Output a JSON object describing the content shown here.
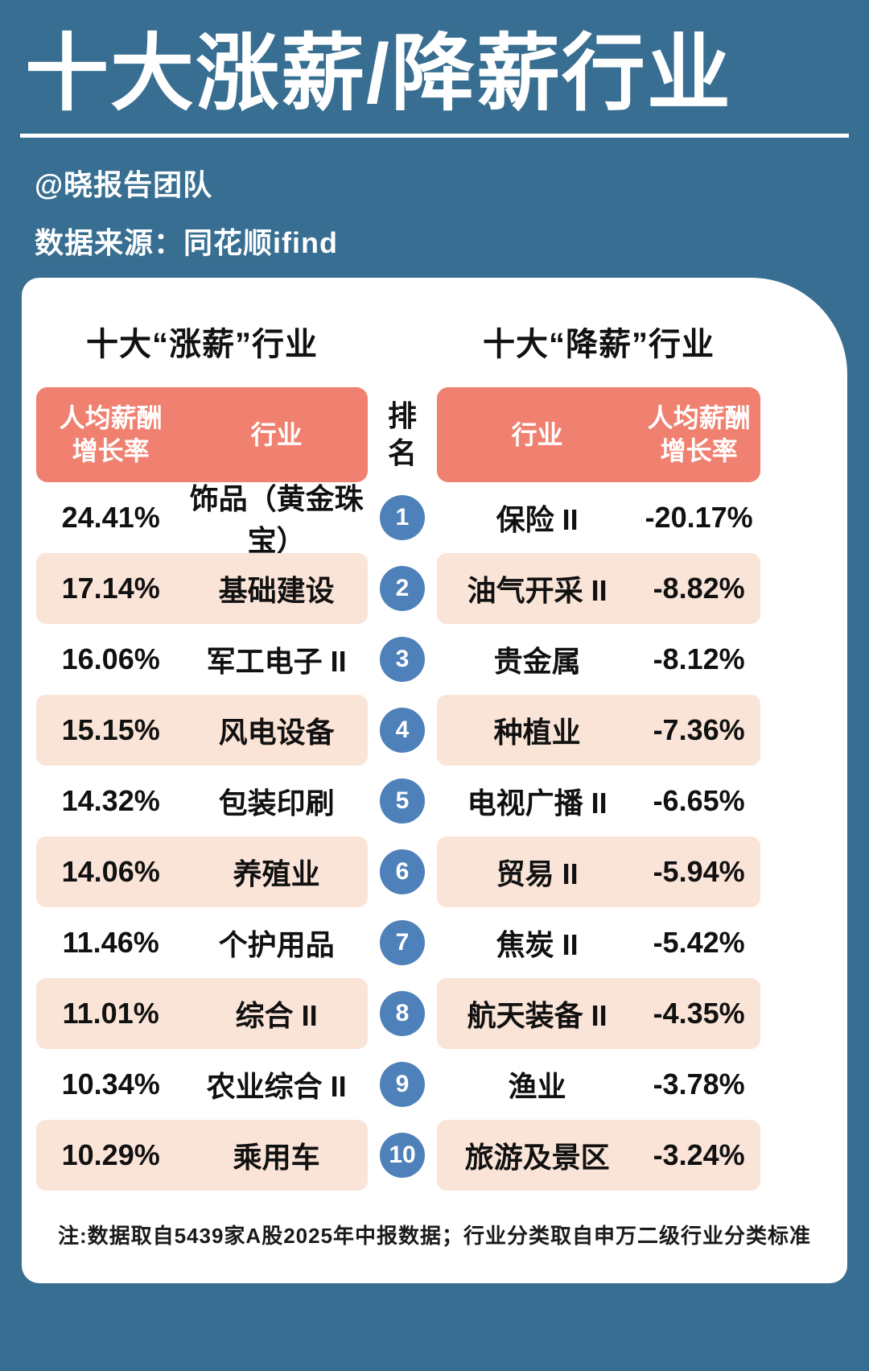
{
  "page": {
    "title": "十大涨薪/降薪行业",
    "author": "@晓报告团队",
    "source": "数据来源：同花顺ifind",
    "footnote": "注:数据取自5439家A股2025年中报数据；行业分类取自申万二级行业分类标准"
  },
  "colors": {
    "background": "#376E91",
    "header_bar": "#F0806F",
    "row_alt": "#FAE4D8",
    "rank_circle": "#4E80BA",
    "card": "#FFFFFF"
  },
  "rank": {
    "header": "排名",
    "values": [
      "1",
      "2",
      "3",
      "4",
      "5",
      "6",
      "7",
      "8",
      "9",
      "10"
    ]
  },
  "increase_table": {
    "title": "十大“涨薪”行业",
    "header_value": "人均薪酬增长率",
    "header_industry": "行业",
    "rows": [
      {
        "value": "24.41%",
        "industry": "饰品（黄金珠宝）"
      },
      {
        "value": "17.14%",
        "industry": "基础建设"
      },
      {
        "value": "16.06%",
        "industry": "军工电子 II"
      },
      {
        "value": "15.15%",
        "industry": "风电设备"
      },
      {
        "value": "14.32%",
        "industry": "包装印刷"
      },
      {
        "value": "14.06%",
        "industry": "养殖业"
      },
      {
        "value": "11.46%",
        "industry": "个护用品"
      },
      {
        "value": "11.01%",
        "industry": "综合 II"
      },
      {
        "value": "10.34%",
        "industry": "农业综合 II"
      },
      {
        "value": "10.29%",
        "industry": "乘用车"
      }
    ]
  },
  "decrease_table": {
    "title": "十大“降薪”行业",
    "header_industry": "行业",
    "header_value": "人均薪酬增长率",
    "rows": [
      {
        "industry": "保险 II",
        "value": "-20.17%"
      },
      {
        "industry": "油气开采 II",
        "value": "-8.82%"
      },
      {
        "industry": "贵金属",
        "value": "-8.12%"
      },
      {
        "industry": "种植业",
        "value": "-7.36%"
      },
      {
        "industry": "电视广播 II",
        "value": "-6.65%"
      },
      {
        "industry": "贸易 II",
        "value": "-5.94%"
      },
      {
        "industry": "焦炭 II",
        "value": "-5.42%"
      },
      {
        "industry": "航天装备 II",
        "value": "-4.35%"
      },
      {
        "industry": "渔业",
        "value": "-3.78%"
      },
      {
        "industry": "旅游及景区",
        "value": "-3.24%"
      }
    ]
  },
  "chart_data": {
    "type": "table",
    "title": "十大涨薪/降薪行业",
    "series": [
      {
        "name": "十大“涨薪”行业",
        "categories": [
          "饰品（黄金珠宝）",
          "基础建设",
          "军工电子 II",
          "风电设备",
          "包装印刷",
          "养殖业",
          "个护用品",
          "综合 II",
          "农业综合 II",
          "乘用车"
        ],
        "values": [
          24.41,
          17.14,
          16.06,
          15.15,
          14.32,
          14.06,
          11.46,
          11.01,
          10.34,
          10.29
        ],
        "unit": "%",
        "value_label": "人均薪酬增长率"
      },
      {
        "name": "十大“降薪”行业",
        "categories": [
          "保险 II",
          "油气开采 II",
          "贵金属",
          "种植业",
          "电视广播 II",
          "贸易 II",
          "焦炭 II",
          "航天装备 II",
          "渔业",
          "旅游及景区"
        ],
        "values": [
          -20.17,
          -8.82,
          -8.12,
          -7.36,
          -6.65,
          -5.94,
          -5.42,
          -4.35,
          -3.78,
          -3.24
        ],
        "unit": "%",
        "value_label": "人均薪酬增长率"
      }
    ]
  }
}
